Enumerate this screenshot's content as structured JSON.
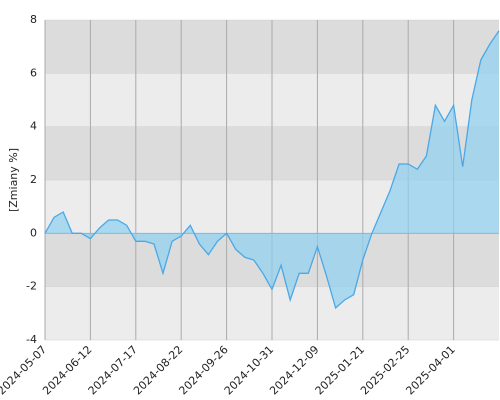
{
  "chart_data": {
    "type": "area",
    "y_label": "[Zmiany %]",
    "categories": [
      "2024-05-07",
      null,
      null,
      null,
      null,
      "2024-06-12",
      null,
      null,
      null,
      null,
      "2024-07-17",
      null,
      null,
      null,
      null,
      "2024-08-22",
      null,
      null,
      null,
      null,
      "2024-09-26",
      null,
      null,
      null,
      null,
      "2024-10-31",
      null,
      null,
      null,
      null,
      "2024-12-09",
      null,
      null,
      null,
      null,
      "2025-01-21",
      null,
      null,
      null,
      null,
      "2025-02-25",
      null,
      null,
      null,
      null,
      "2025-04-01",
      null,
      null,
      null,
      null,
      null
    ],
    "values": [
      0.0,
      0.6,
      0.8,
      0.0,
      0.0,
      -0.2,
      0.2,
      0.5,
      0.5,
      0.3,
      -0.3,
      -0.3,
      -0.4,
      -1.5,
      -0.3,
      -0.1,
      0.3,
      -0.4,
      -0.8,
      -0.3,
      0.0,
      -0.6,
      -0.9,
      -1.0,
      -1.5,
      -2.1,
      -1.2,
      -2.5,
      -1.5,
      -1.5,
      -0.5,
      -1.6,
      -2.8,
      -2.5,
      -2.3,
      -1.0,
      0.0,
      0.8,
      1.6,
      2.6,
      2.6,
      2.4,
      2.9,
      4.8,
      4.2,
      4.8,
      2.5,
      5.0,
      6.5,
      7.1,
      7.6
    ],
    "color": "#4aa8e6",
    "ylim": [
      -4,
      8
    ],
    "yticks": [
      -4,
      -2,
      0,
      2,
      4,
      6,
      8
    ],
    "grid": true
  }
}
